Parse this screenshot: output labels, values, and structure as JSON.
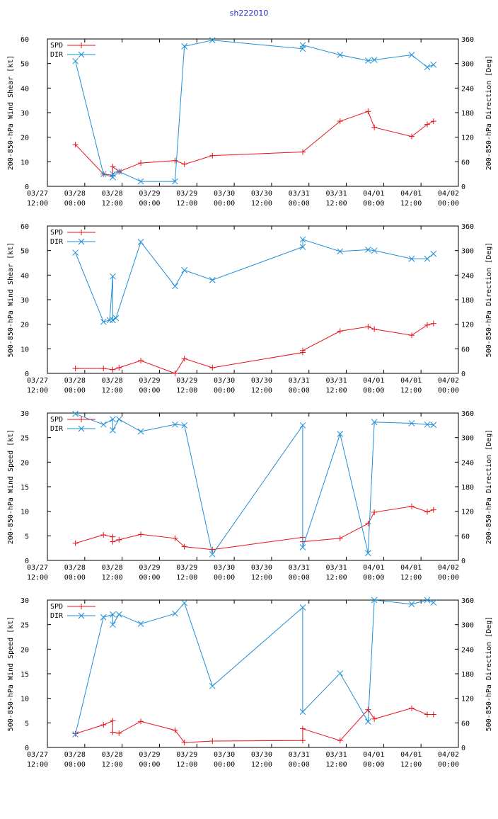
{
  "title": "sh222010",
  "colors": {
    "spd": "#e8131a",
    "dir": "#1f8fd6",
    "title": "#2a2acc"
  },
  "x_ticks": [
    {
      "date": "03/27",
      "time": "12:00"
    },
    {
      "date": "03/28",
      "time": "00:00"
    },
    {
      "date": "03/28",
      "time": "12:00"
    },
    {
      "date": "03/29",
      "time": "00:00"
    },
    {
      "date": "03/29",
      "time": "12:00"
    },
    {
      "date": "03/30",
      "time": "00:00"
    },
    {
      "date": "03/30",
      "time": "12:00"
    },
    {
      "date": "03/31",
      "time": "00:00"
    },
    {
      "date": "03/31",
      "time": "12:00"
    },
    {
      "date": "04/01",
      "time": "00:00"
    },
    {
      "date": "04/01",
      "time": "12:00"
    },
    {
      "date": "04/02",
      "time": "00:00"
    }
  ],
  "chart_data": [
    {
      "type": "line",
      "ylabel": "200-850-hPa Wind Shear [kt]",
      "y2label": "200-850-hPa Direction [Deg]",
      "ylim": [
        0,
        60
      ],
      "y2lim": [
        0,
        360
      ],
      "yticks": [
        "0",
        "10",
        "20",
        "30",
        "40",
        "50",
        "60"
      ],
      "y2ticks": [
        "0",
        "60",
        "120",
        "180",
        "240",
        "300",
        "360"
      ],
      "xlim_hours": [
        0,
        132
      ],
      "legend": "top-left",
      "series": [
        {
          "name": "SPD",
          "axis": "left",
          "marker": "plus",
          "x": [
            9,
            18,
            21,
            21,
            23,
            30,
            41,
            44,
            53,
            82,
            94,
            103,
            105,
            117,
            122,
            124
          ],
          "values": [
            17,
            5,
            4.5,
            8,
            6,
            9.5,
            10.5,
            9,
            12.5,
            14,
            26.5,
            30.5,
            24,
            20.3,
            25.2,
            26.5
          ]
        },
        {
          "name": "DIR",
          "axis": "right",
          "marker": "cross",
          "x": [
            9,
            18,
            21,
            21,
            23,
            30,
            41,
            44,
            53,
            82,
            82,
            94,
            103,
            105,
            117,
            122,
            124
          ],
          "values": [
            306,
            30,
            22,
            30,
            36,
            12,
            12,
            342,
            357,
            336,
            345,
            321,
            307,
            309,
            321,
            291,
            297
          ]
        }
      ]
    },
    {
      "type": "line",
      "ylabel": "500-850-hPa Wind Shear [kt]",
      "y2label": "500-850-hPa Direction [Deg]",
      "ylim": [
        0,
        60
      ],
      "y2lim": [
        0,
        360
      ],
      "yticks": [
        "0",
        "10",
        "20",
        "30",
        "40",
        "50",
        "60"
      ],
      "y2ticks": [
        "0",
        "60",
        "120",
        "180",
        "240",
        "300",
        "360"
      ],
      "xlim_hours": [
        0,
        132
      ],
      "legend": "top-left",
      "series": [
        {
          "name": "SPD",
          "axis": "left",
          "marker": "plus",
          "x": [
            9,
            18,
            21,
            23,
            30,
            41,
            44,
            53,
            82,
            82,
            94,
            103,
            105,
            117,
            122,
            124
          ],
          "values": [
            2,
            2,
            1.5,
            2.3,
            5.2,
            0,
            6,
            2.3,
            8.5,
            9.3,
            17.2,
            19,
            18,
            15.5,
            19.7,
            20.3
          ]
        },
        {
          "name": "DIR",
          "axis": "right",
          "marker": "cross",
          "x": [
            9,
            18,
            20,
            21,
            21,
            22,
            30,
            41,
            44,
            53,
            82,
            82,
            94,
            103,
            105,
            117,
            122,
            124
          ],
          "values": [
            295,
            126,
            130,
            237,
            130,
            135,
            321,
            213,
            252,
            228,
            309,
            327,
            298,
            302,
            300,
            280,
            280,
            292
          ]
        }
      ]
    },
    {
      "type": "line",
      "ylabel": "200-850-hPa Wind Speed [kt]",
      "y2label": "200-850-hPa Direction [Deg]",
      "ylim": [
        0,
        30
      ],
      "y2lim": [
        0,
        360
      ],
      "yticks": [
        "0",
        "5",
        "10",
        "15",
        "20",
        "25",
        "30"
      ],
      "y2ticks": [
        "0",
        "60",
        "120",
        "180",
        "240",
        "300",
        "360"
      ],
      "xlim_hours": [
        0,
        132
      ],
      "legend": "top-left",
      "series": [
        {
          "name": "SPD",
          "axis": "left",
          "marker": "plus",
          "x": [
            9,
            18,
            21,
            21,
            23,
            30,
            41,
            44,
            53,
            82,
            82,
            94,
            103,
            105,
            117,
            122,
            124
          ],
          "values": [
            3.5,
            5.2,
            4.8,
            3.8,
            4.2,
            5.3,
            4.5,
            2.8,
            2.2,
            4.7,
            3.8,
            4.5,
            7.5,
            9.8,
            11,
            9.9,
            10.3
          ]
        },
        {
          "name": "DIR",
          "axis": "right",
          "marker": "cross",
          "x": [
            9,
            18,
            21,
            21,
            23,
            30,
            41,
            44,
            53,
            82,
            82,
            94,
            103,
            105,
            117,
            122,
            124
          ],
          "values": [
            358,
            332,
            345,
            318,
            345,
            315,
            332,
            330,
            15,
            330,
            32,
            309,
            18,
            338,
            335,
            332,
            331
          ]
        }
      ]
    },
    {
      "type": "line",
      "ylabel": "500-850-hPa Wind Speed [kt]",
      "y2label": "500-850-hPa Direction [Deg]",
      "ylim": [
        0,
        30
      ],
      "y2lim": [
        0,
        360
      ],
      "yticks": [
        "0",
        "5",
        "10",
        "15",
        "20",
        "25",
        "30"
      ],
      "y2ticks": [
        "0",
        "60",
        "120",
        "180",
        "240",
        "300",
        "360"
      ],
      "xlim_hours": [
        0,
        132
      ],
      "legend": "top-left",
      "series": [
        {
          "name": "SPD",
          "axis": "left",
          "marker": "plus",
          "x": [
            9,
            18,
            21,
            21,
            23,
            30,
            41,
            44,
            53,
            82,
            82,
            94,
            103,
            105,
            117,
            122,
            124
          ],
          "values": [
            2.8,
            4.6,
            5.4,
            3.1,
            2.9,
            5.3,
            3.5,
            1,
            1.3,
            1.4,
            3.8,
            1.4,
            7.7,
            5.8,
            8,
            6.7,
            6.7
          ]
        },
        {
          "name": "DIR",
          "axis": "right",
          "marker": "cross",
          "x": [
            9,
            18,
            21,
            21,
            23,
            30,
            41,
            44,
            53,
            82,
            82,
            94,
            103,
            105,
            117,
            122,
            124
          ],
          "values": [
            32,
            318,
            325,
            300,
            325,
            302,
            327,
            353,
            150,
            342,
            87,
            181,
            63,
            360,
            350,
            360,
            354
          ]
        }
      ]
    }
  ]
}
